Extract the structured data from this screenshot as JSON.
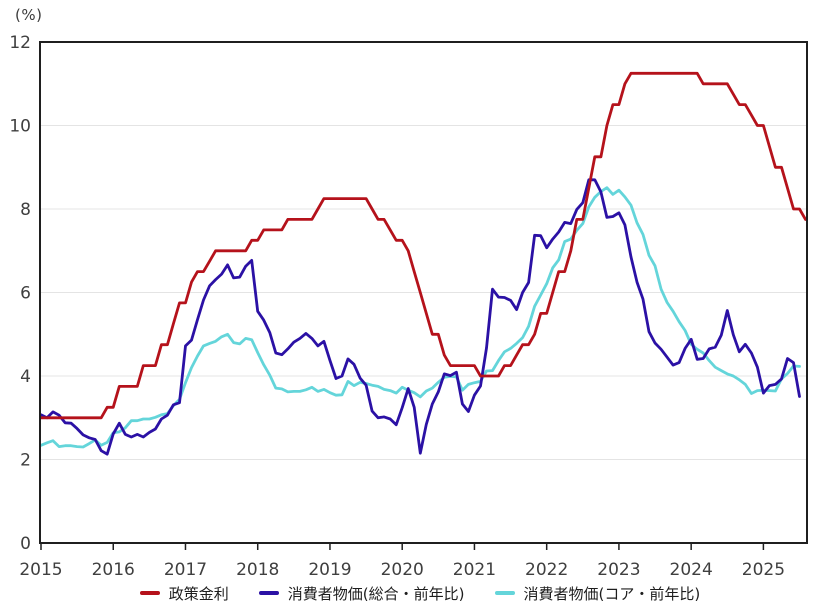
{
  "chart_data": {
    "type": "line",
    "title": "",
    "unit_label": "(%)",
    "frequency": "monthly",
    "x_start": {
      "year": 2015,
      "month": 1
    },
    "x_end": {
      "year": 2025,
      "month": 8
    },
    "x_axis": {
      "tick_labels": [
        "2015",
        "2016",
        "2017",
        "2018",
        "2019",
        "2020",
        "2021",
        "2022",
        "2023",
        "2024",
        "2025"
      ],
      "months_per_tick": 12
    },
    "y_axis": {
      "range": [
        0,
        12
      ],
      "ticks": [
        0,
        2,
        4,
        6,
        8,
        10,
        12
      ],
      "grid_ticks": [
        2,
        4,
        6,
        8,
        10
      ]
    },
    "legend_position": "bottom",
    "style": {
      "axis_color": "#1f1f1f",
      "grid_color": "#e4e4e4",
      "tick_label_color": "#3f3f3f",
      "legend_text_color": "#1d1d1d",
      "background": "#ffffff"
    },
    "series": [
      {
        "key": "cpi-core",
        "name": "消費者物価(コア・前年比)",
        "color": "#64d5da",
        "z": 1,
        "values": [
          2.34,
          2.4,
          2.45,
          2.31,
          2.33,
          2.33,
          2.31,
          2.3,
          2.38,
          2.47,
          2.34,
          2.41,
          2.64,
          2.66,
          2.76,
          2.93,
          2.93,
          2.97,
          2.97,
          3.01,
          3.07,
          3.1,
          3.29,
          3.44,
          3.84,
          4.2,
          4.48,
          4.72,
          4.78,
          4.83,
          4.94,
          5.0,
          4.8,
          4.77,
          4.9,
          4.87,
          4.56,
          4.27,
          4.02,
          3.71,
          3.69,
          3.62,
          3.63,
          3.63,
          3.67,
          3.73,
          3.63,
          3.68,
          3.6,
          3.54,
          3.55,
          3.87,
          3.77,
          3.85,
          3.82,
          3.78,
          3.75,
          3.68,
          3.65,
          3.59,
          3.73,
          3.66,
          3.6,
          3.5,
          3.64,
          3.71,
          3.85,
          3.97,
          3.99,
          3.98,
          3.66,
          3.8,
          3.84,
          3.87,
          4.12,
          4.13,
          4.37,
          4.58,
          4.66,
          4.78,
          4.92,
          5.19,
          5.67,
          5.94,
          6.21,
          6.59,
          6.78,
          7.22,
          7.28,
          7.49,
          7.65,
          8.05,
          8.28,
          8.42,
          8.51,
          8.35,
          8.45,
          8.29,
          8.09,
          7.67,
          7.39,
          6.89,
          6.64,
          6.08,
          5.76,
          5.55,
          5.3,
          5.09,
          4.76,
          4.64,
          4.55,
          4.37,
          4.21,
          4.13,
          4.05,
          4.0,
          3.91,
          3.8,
          3.58,
          3.65,
          3.66,
          3.65,
          3.64,
          3.93,
          4.06,
          4.24,
          4.23,
          null
        ]
      },
      {
        "key": "cpi-headline",
        "name": "消費者物価(総合・前年比)",
        "color": "#2b11a5",
        "z": 2,
        "values": [
          3.07,
          3.0,
          3.14,
          3.06,
          2.88,
          2.87,
          2.74,
          2.59,
          2.52,
          2.48,
          2.21,
          2.13,
          2.61,
          2.87,
          2.6,
          2.54,
          2.6,
          2.54,
          2.65,
          2.73,
          2.97,
          3.06,
          3.31,
          3.36,
          4.72,
          4.86,
          5.35,
          5.82,
          6.16,
          6.31,
          6.44,
          6.66,
          6.35,
          6.37,
          6.63,
          6.77,
          5.55,
          5.34,
          5.04,
          4.55,
          4.51,
          4.65,
          4.81,
          4.9,
          5.02,
          4.9,
          4.72,
          4.83,
          4.37,
          3.94,
          4.0,
          4.41,
          4.28,
          3.95,
          3.78,
          3.16,
          3.0,
          3.02,
          2.97,
          2.83,
          3.24,
          3.7,
          3.25,
          2.15,
          2.84,
          3.33,
          3.62,
          4.05,
          4.01,
          4.09,
          3.33,
          3.15,
          3.54,
          3.76,
          4.67,
          6.08,
          5.89,
          5.88,
          5.81,
          5.59,
          6.0,
          6.24,
          7.37,
          7.36,
          7.07,
          7.28,
          7.45,
          7.68,
          7.65,
          7.99,
          8.15,
          8.7,
          8.7,
          8.41,
          7.8,
          7.82,
          7.91,
          7.62,
          6.85,
          6.25,
          5.84,
          5.06,
          4.79,
          4.64,
          4.45,
          4.26,
          4.32,
          4.66,
          4.88,
          4.4,
          4.42,
          4.65,
          4.69,
          4.98,
          5.57,
          4.99,
          4.58,
          4.76,
          4.55,
          4.21,
          3.59,
          3.77,
          3.8,
          3.93,
          4.42,
          4.32,
          3.51,
          null
        ]
      },
      {
        "key": "policy-rate",
        "name": "政策金利",
        "color": "#b5121b",
        "z": 3,
        "values": [
          3.0,
          3.0,
          3.0,
          3.0,
          3.0,
          3.0,
          3.0,
          3.0,
          3.0,
          3.0,
          3.0,
          3.25,
          3.25,
          3.75,
          3.75,
          3.75,
          3.75,
          4.25,
          4.25,
          4.25,
          4.75,
          4.75,
          5.25,
          5.75,
          5.75,
          6.25,
          6.5,
          6.5,
          6.75,
          7.0,
          7.0,
          7.0,
          7.0,
          7.0,
          7.0,
          7.25,
          7.25,
          7.5,
          7.5,
          7.5,
          7.5,
          7.75,
          7.75,
          7.75,
          7.75,
          7.75,
          8.0,
          8.25,
          8.25,
          8.25,
          8.25,
          8.25,
          8.25,
          8.25,
          8.25,
          8.0,
          7.75,
          7.75,
          7.5,
          7.25,
          7.25,
          7.0,
          6.5,
          6.0,
          5.5,
          5.0,
          5.0,
          4.5,
          4.25,
          4.25,
          4.25,
          4.25,
          4.25,
          4.0,
          4.0,
          4.0,
          4.0,
          4.25,
          4.25,
          4.5,
          4.75,
          4.75,
          5.0,
          5.5,
          5.5,
          6.0,
          6.5,
          6.5,
          7.0,
          7.75,
          7.75,
          8.5,
          9.25,
          9.25,
          10.0,
          10.5,
          10.5,
          11.0,
          11.25,
          11.25,
          11.25,
          11.25,
          11.25,
          11.25,
          11.25,
          11.25,
          11.25,
          11.25,
          11.25,
          11.25,
          11.0,
          11.0,
          11.0,
          11.0,
          11.0,
          10.75,
          10.5,
          10.5,
          10.25,
          10.0,
          10.0,
          9.5,
          9.0,
          9.0,
          8.5,
          8.0,
          8.0,
          7.75
        ]
      }
    ],
    "legend_order": [
      "policy-rate",
      "cpi-headline",
      "cpi-core"
    ]
  }
}
